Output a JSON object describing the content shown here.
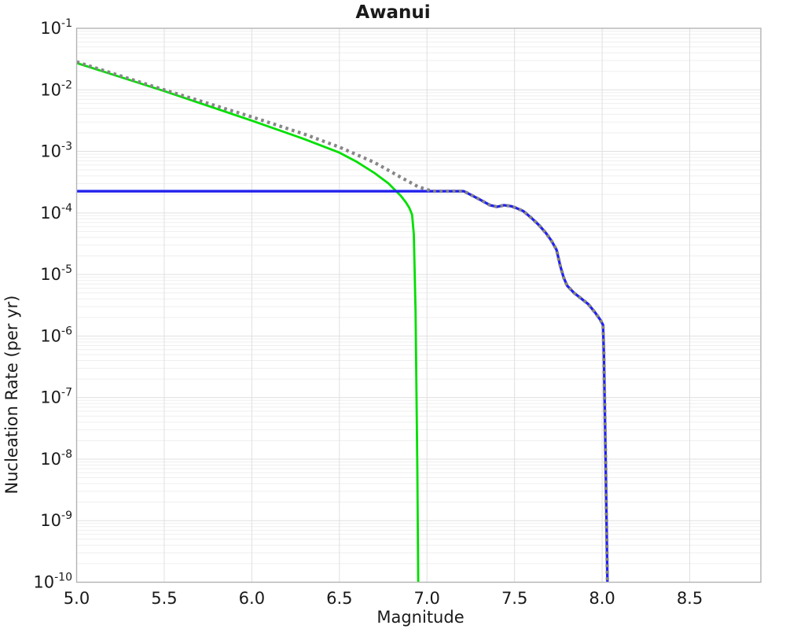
{
  "chart_data": {
    "type": "line",
    "title": "Awanui",
    "xlabel": "Magnitude",
    "ylabel": "Nucleation Rate (per yr)",
    "x_scale": "linear",
    "y_scale": "log",
    "xlim": [
      5.0,
      8.906
    ],
    "ylog_lim": [
      -1,
      -10
    ],
    "x_ticks": [
      5.0,
      5.5,
      6.0,
      6.5,
      7.0,
      7.5,
      8.0,
      8.5
    ],
    "y_tick_exponents": [
      -1,
      -2,
      -3,
      -4,
      -5,
      -6,
      -7,
      -8,
      -9,
      -10
    ],
    "grid": true,
    "legend_position": "none",
    "plateau_rate_per_yr": 0.000225,
    "series": [
      {
        "name": "target-gr-dotted",
        "color": "#868686",
        "style": "dotted",
        "width": 4.2,
        "points_mag_log10rate": [
          [
            5.0,
            -1.545
          ],
          [
            5.5,
            -2.0
          ],
          [
            6.0,
            -2.44
          ],
          [
            6.3,
            -2.72
          ],
          [
            6.5,
            -2.93
          ],
          [
            6.7,
            -3.18
          ],
          [
            6.85,
            -3.42
          ],
          [
            6.95,
            -3.575
          ],
          [
            7.03,
            -3.647
          ],
          [
            7.21,
            -3.647
          ],
          [
            7.24,
            -3.69
          ],
          [
            7.3,
            -3.78
          ],
          [
            7.36,
            -3.875
          ],
          [
            7.4,
            -3.9
          ],
          [
            7.44,
            -3.875
          ],
          [
            7.48,
            -3.89
          ],
          [
            7.51,
            -3.92
          ],
          [
            7.55,
            -3.97
          ],
          [
            7.6,
            -4.09
          ],
          [
            7.64,
            -4.2
          ],
          [
            7.68,
            -4.33
          ],
          [
            7.71,
            -4.45
          ],
          [
            7.74,
            -4.6
          ],
          [
            7.76,
            -4.85
          ],
          [
            7.78,
            -5.05
          ],
          [
            7.8,
            -5.18
          ],
          [
            7.84,
            -5.3
          ],
          [
            7.88,
            -5.39
          ],
          [
            7.92,
            -5.48
          ],
          [
            7.96,
            -5.62
          ],
          [
            7.99,
            -5.74
          ],
          [
            8.005,
            -5.82
          ],
          [
            8.01,
            -6.3
          ],
          [
            8.02,
            -8.0
          ],
          [
            8.03,
            -10.0
          ]
        ]
      },
      {
        "name": "green-gr-tapered",
        "color": "#00df00",
        "style": "solid",
        "width": 2.8,
        "points_mag_log10rate": [
          [
            5.0,
            -1.563
          ],
          [
            5.5,
            -2.02
          ],
          [
            6.0,
            -2.5
          ],
          [
            6.3,
            -2.8
          ],
          [
            6.5,
            -3.02
          ],
          [
            6.6,
            -3.17
          ],
          [
            6.7,
            -3.35
          ],
          [
            6.78,
            -3.52
          ],
          [
            6.85,
            -3.72
          ],
          [
            6.88,
            -3.83
          ],
          [
            6.9,
            -3.92
          ],
          [
            6.915,
            -4.03
          ],
          [
            6.925,
            -4.35
          ],
          [
            6.935,
            -5.6
          ],
          [
            6.945,
            -8.2
          ],
          [
            6.95,
            -10.0
          ]
        ]
      },
      {
        "name": "blue-simulated-rate",
        "color": "#2222ee",
        "style": "solid",
        "width": 3.3,
        "points_mag_log10rate": [
          [
            5.0,
            -3.647
          ],
          [
            7.21,
            -3.647
          ],
          [
            7.24,
            -3.69
          ],
          [
            7.3,
            -3.78
          ],
          [
            7.36,
            -3.875
          ],
          [
            7.4,
            -3.9
          ],
          [
            7.44,
            -3.875
          ],
          [
            7.48,
            -3.89
          ],
          [
            7.51,
            -3.92
          ],
          [
            7.55,
            -3.97
          ],
          [
            7.6,
            -4.09
          ],
          [
            7.64,
            -4.2
          ],
          [
            7.68,
            -4.33
          ],
          [
            7.71,
            -4.45
          ],
          [
            7.74,
            -4.6
          ],
          [
            7.76,
            -4.85
          ],
          [
            7.78,
            -5.05
          ],
          [
            7.8,
            -5.18
          ],
          [
            7.84,
            -5.3
          ],
          [
            7.88,
            -5.39
          ],
          [
            7.92,
            -5.48
          ],
          [
            7.96,
            -5.62
          ],
          [
            7.99,
            -5.74
          ],
          [
            8.005,
            -5.82
          ],
          [
            8.01,
            -6.3
          ],
          [
            8.02,
            -8.0
          ],
          [
            8.03,
            -10.0
          ]
        ]
      }
    ]
  }
}
